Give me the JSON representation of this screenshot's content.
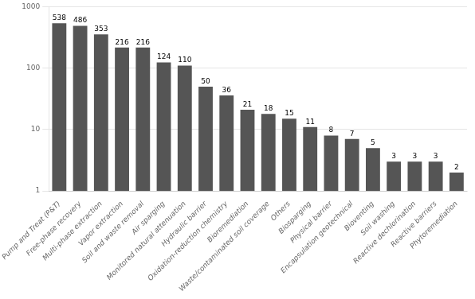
{
  "chart_data": {
    "type": "bar",
    "categories": [
      "Pump and Treat (P&T)",
      "Free-phase recovery",
      "Multi-phase extraction",
      "Vapor extraction",
      "Soil and waste removal",
      "Air sparging",
      "Monitored natural attenuation",
      "Hydraulic barrier",
      "Oxidation-reduction chemistry",
      "Bioremediation",
      "Waste/contaminated soil coverage",
      "Others",
      "Biosparging",
      "Physical barrier",
      "Encapsulation geotechnical",
      "Bioventing",
      "Soil washing",
      "Reactive dechlorination",
      "Reactive barriers",
      "Phytoremediation"
    ],
    "values": [
      538,
      486,
      353,
      216,
      216,
      124,
      110,
      50,
      36,
      21,
      18,
      15,
      11,
      8,
      7,
      5,
      3,
      3,
      3,
      2
    ],
    "color": "#555555",
    "ylim": [
      1,
      1000
    ],
    "yticks": [
      1,
      10,
      100,
      1000
    ],
    "log": "y",
    "grid": true,
    "data_labels": true
  }
}
